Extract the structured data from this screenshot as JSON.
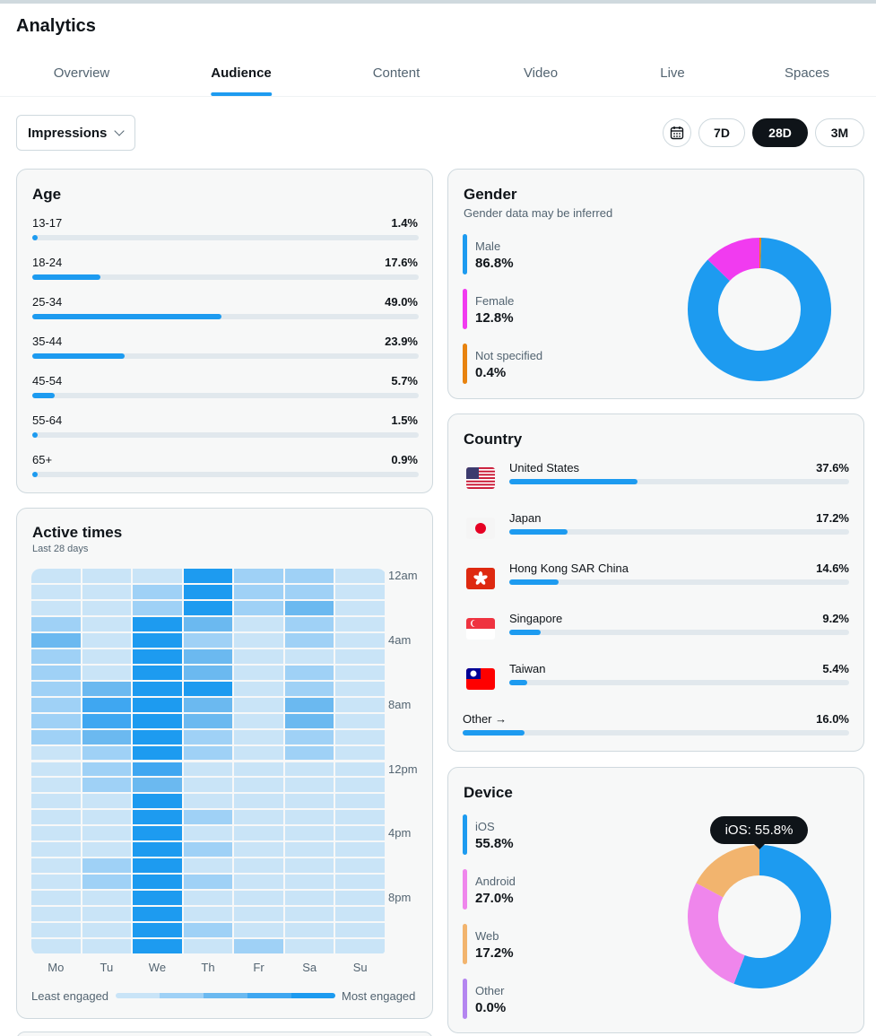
{
  "header": {
    "title": "Analytics"
  },
  "tabs": [
    {
      "label": "Overview",
      "active": false
    },
    {
      "label": "Audience",
      "active": true
    },
    {
      "label": "Content",
      "active": false
    },
    {
      "label": "Video",
      "active": false
    },
    {
      "label": "Live",
      "active": false
    },
    {
      "label": "Spaces",
      "active": false
    }
  ],
  "toolbar": {
    "metric_select": "Impressions",
    "calendar_icon": "calendar-icon",
    "ranges": [
      {
        "label": "7D",
        "active": false
      },
      {
        "label": "28D",
        "active": true
      },
      {
        "label": "3M",
        "active": false
      }
    ]
  },
  "age": {
    "title": "Age",
    "rows": [
      {
        "label": "13-17",
        "value": "1.4%",
        "pct": 1.4
      },
      {
        "label": "18-24",
        "value": "17.6%",
        "pct": 17.6
      },
      {
        "label": "25-34",
        "value": "49.0%",
        "pct": 49.0
      },
      {
        "label": "35-44",
        "value": "23.9%",
        "pct": 23.9
      },
      {
        "label": "45-54",
        "value": "5.7%",
        "pct": 5.7
      },
      {
        "label": "55-64",
        "value": "1.5%",
        "pct": 1.5
      },
      {
        "label": "65+",
        "value": "0.9%",
        "pct": 0.9
      }
    ]
  },
  "gender": {
    "title": "Gender",
    "subtitle": "Gender data may be inferred",
    "items": [
      {
        "label": "Male",
        "value": "86.8%",
        "pct": 86.8,
        "color": "#1d9bf0"
      },
      {
        "label": "Female",
        "value": "12.8%",
        "pct": 12.8,
        "color": "#f13bf0"
      },
      {
        "label": "Not specified",
        "value": "0.4%",
        "pct": 0.4,
        "color": "#e8830f"
      }
    ]
  },
  "country": {
    "title": "Country",
    "rows": [
      {
        "label": "United States",
        "value": "37.6%",
        "pct": 37.6,
        "flag": "us-flag-icon"
      },
      {
        "label": "Japan",
        "value": "17.2%",
        "pct": 17.2,
        "flag": "japan-flag-icon"
      },
      {
        "label": "Hong Kong SAR China",
        "value": "14.6%",
        "pct": 14.6,
        "flag": "hong-kong-flag-icon"
      },
      {
        "label": "Singapore",
        "value": "9.2%",
        "pct": 9.2,
        "flag": "singapore-flag-icon"
      },
      {
        "label": "Taiwan",
        "value": "5.4%",
        "pct": 5.4,
        "flag": "taiwan-flag-icon"
      }
    ],
    "other": {
      "label": "Other →",
      "value": "16.0%",
      "pct": 16.0
    }
  },
  "active_times": {
    "title": "Active times",
    "subtitle": "Last 28 days",
    "days": [
      "Mo",
      "Tu",
      "We",
      "Th",
      "Fr",
      "Sa",
      "Su"
    ],
    "hour_labels": [
      "12am",
      "4am",
      "8am",
      "12pm",
      "4pm",
      "8pm"
    ],
    "least_label": "Least engaged",
    "most_label": "Most engaged",
    "scale_colors": [
      "#c9e4f7",
      "#9fd1f6",
      "#6bb9f0",
      "#3fa7f1",
      "#1d9bf0"
    ],
    "levels": [
      [
        1,
        1,
        1,
        5,
        2,
        2,
        1
      ],
      [
        1,
        1,
        2,
        5,
        2,
        2,
        1
      ],
      [
        1,
        1,
        2,
        5,
        2,
        3,
        1
      ],
      [
        2,
        1,
        5,
        3,
        1,
        2,
        1
      ],
      [
        3,
        1,
        5,
        2,
        1,
        2,
        1
      ],
      [
        2,
        1,
        5,
        3,
        1,
        1,
        1
      ],
      [
        2,
        1,
        5,
        3,
        1,
        2,
        1
      ],
      [
        2,
        3,
        5,
        5,
        1,
        2,
        1
      ],
      [
        2,
        4,
        5,
        3,
        1,
        3,
        1
      ],
      [
        2,
        4,
        5,
        3,
        1,
        3,
        1
      ],
      [
        2,
        3,
        5,
        2,
        1,
        2,
        1
      ],
      [
        1,
        2,
        5,
        2,
        1,
        2,
        1
      ],
      [
        1,
        2,
        4,
        1,
        1,
        1,
        1
      ],
      [
        1,
        2,
        3,
        1,
        1,
        1,
        1
      ],
      [
        1,
        1,
        5,
        1,
        1,
        1,
        1
      ],
      [
        1,
        1,
        5,
        2,
        1,
        1,
        1
      ],
      [
        1,
        1,
        5,
        1,
        1,
        1,
        1
      ],
      [
        1,
        1,
        5,
        2,
        1,
        1,
        1
      ],
      [
        1,
        2,
        5,
        1,
        1,
        1,
        1
      ],
      [
        1,
        2,
        5,
        2,
        1,
        1,
        1
      ],
      [
        1,
        1,
        5,
        1,
        1,
        1,
        1
      ],
      [
        1,
        1,
        5,
        1,
        1,
        1,
        1
      ],
      [
        1,
        1,
        5,
        2,
        1,
        1,
        1
      ],
      [
        1,
        1,
        5,
        1,
        2,
        1,
        1
      ]
    ]
  },
  "device": {
    "title": "Device",
    "tooltip": "iOS: 55.8%",
    "items": [
      {
        "label": "iOS",
        "value": "55.8%",
        "pct": 55.8,
        "color": "#1d9bf0"
      },
      {
        "label": "Android",
        "value": "27.0%",
        "pct": 27.0,
        "color": "#ef86ec"
      },
      {
        "label": "Web",
        "value": "17.2%",
        "pct": 17.2,
        "color": "#f2b46e"
      },
      {
        "label": "Other",
        "value": "0.0%",
        "pct": 0.0,
        "color": "#b486f0"
      }
    ]
  }
}
